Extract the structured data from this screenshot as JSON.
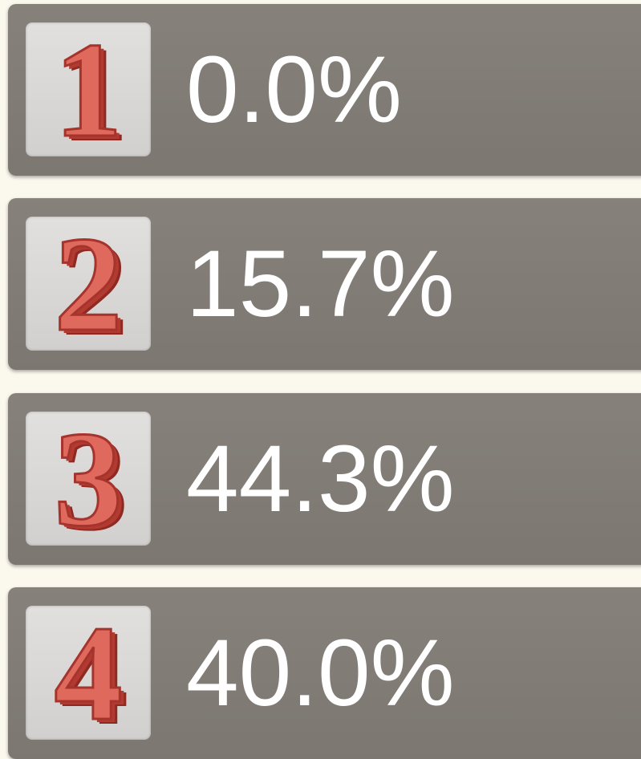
{
  "items": [
    {
      "rank": "1",
      "value": "0.0%"
    },
    {
      "rank": "2",
      "value": "15.7%"
    },
    {
      "rank": "3",
      "value": "44.3%"
    },
    {
      "rank": "4",
      "value": "40.0%"
    }
  ]
}
